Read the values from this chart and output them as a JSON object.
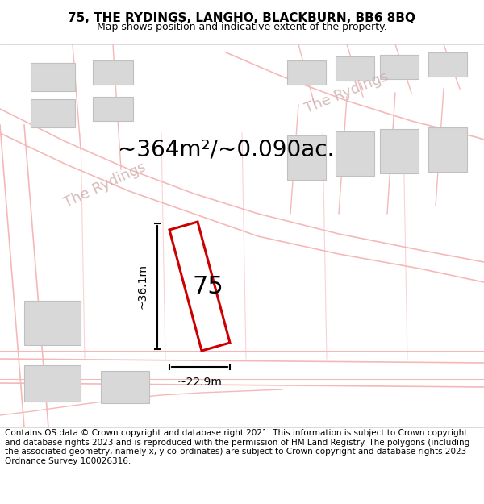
{
  "title": "75, THE RYDINGS, LANGHO, BLACKBURN, BB6 8BQ",
  "subtitle": "Map shows position and indicative extent of the property.",
  "footer": "Contains OS data © Crown copyright and database right 2021. This information is subject to Crown copyright and database rights 2023 and is reproduced with the permission of HM Land Registry. The polygons (including the associated geometry, namely x, y co-ordinates) are subject to Crown copyright and database rights 2023 Ordnance Survey 100026316.",
  "area_text": "~364m²/~0.090ac.",
  "label_75": "75",
  "dim_width": "~22.9m",
  "dim_height": "~36.1m",
  "road_label_1": "The Rydings",
  "road_label_2": "The Rydings",
  "bg_color": "#f5f5f5",
  "map_bg": "#f0eeee",
  "road_color": "#f5b8b8",
  "block_color": "#d8d8d8",
  "block_edge": "#c0c0c0",
  "plot_fill": "#ffffff",
  "plot_edge": "#cc0000",
  "dim_color": "#000000",
  "title_fontsize": 11,
  "subtitle_fontsize": 9,
  "footer_fontsize": 7.5,
  "area_fontsize": 20,
  "label_fontsize": 22,
  "road_label_fontsize": 13
}
